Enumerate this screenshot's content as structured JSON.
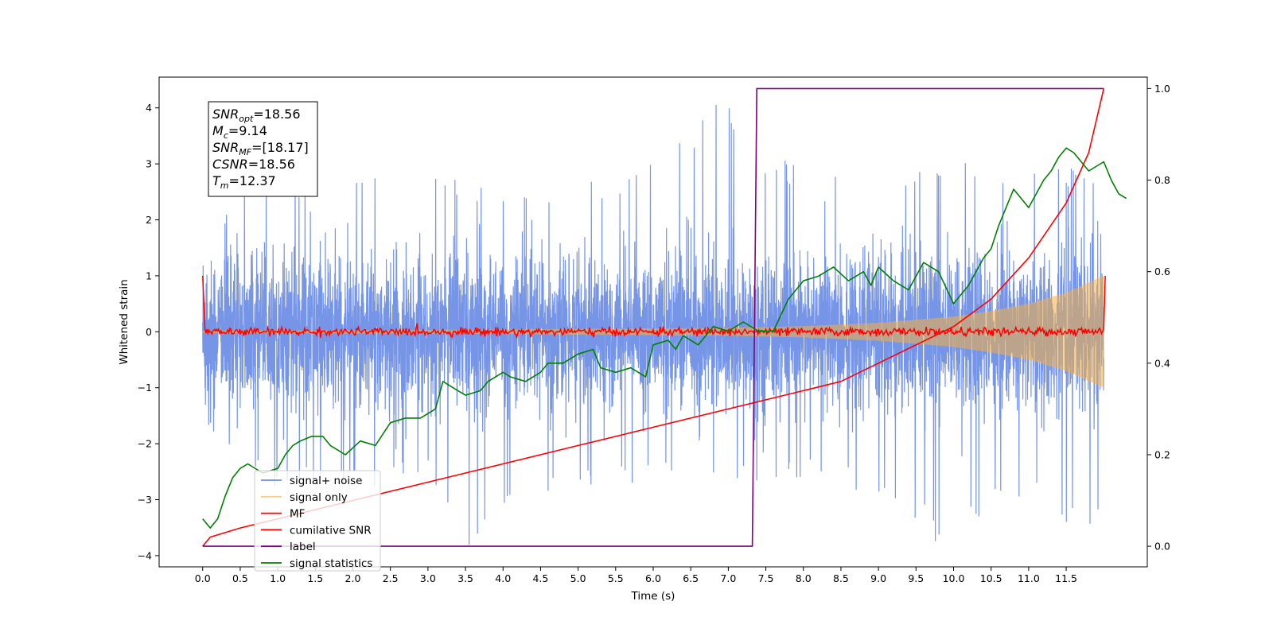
{
  "chart_data": {
    "type": "line",
    "xlabel": "Time (s)",
    "ylabel": "Whitened strain",
    "xlim": [
      -0.58,
      12.58
    ],
    "ylim": [
      -4.2,
      4.55
    ],
    "y2lim": [
      -0.045,
      1.025
    ],
    "x_ticks": [
      0,
      0.5,
      1,
      1.5,
      2,
      2.5,
      3,
      3.5,
      4,
      4.5,
      5,
      5.5,
      6,
      6.5,
      7,
      7.5,
      8,
      8.5,
      9,
      9.5,
      10,
      10.5,
      11,
      11.5
    ],
    "x_tick_labels": [
      "0.0",
      "0.5",
      "1.0",
      "1.5",
      "2.0",
      "2.5",
      "3.0",
      "3.5",
      "4.0",
      "4.5",
      "5.0",
      "5.5",
      "6.0",
      "6.5",
      "7.0",
      "7.5",
      "8.0",
      "8.5",
      "9.0",
      "9.5",
      "10.0",
      "10.5",
      "11.0",
      "11.5"
    ],
    "y_ticks": [
      4,
      3,
      2,
      1,
      0,
      -1,
      -2,
      -3,
      -4
    ],
    "y_tick_labels": [
      "4",
      "3",
      "2",
      "1",
      "0",
      "−1",
      "−2",
      "−3",
      "−4"
    ],
    "y2_ticks": [
      1.0,
      0.8,
      0.6,
      0.4,
      0.2,
      0.0
    ],
    "y2_tick_labels": [
      "1.0",
      "0.8",
      "0.6",
      "0.4",
      "0.2",
      "0.0"
    ],
    "grid": false,
    "legend_position": "lower-left",
    "legend": [
      {
        "label": "signal+ noise",
        "color": "#6f8fe6"
      },
      {
        "label": "signal only",
        "color": "#f5b041"
      },
      {
        "label": "MF",
        "color": "#ff0000"
      },
      {
        "label": "cumilative SNR",
        "color": "#ff0000"
      },
      {
        "label": "label",
        "color": "#800080"
      },
      {
        "label": "signal statistics",
        "color": "#008000"
      }
    ],
    "info_box": {
      "snr_opt": "=18.56",
      "mc": "=9.14",
      "snr_mf": "=[18.17]",
      "csnr": "=18.56",
      "tm": "=12.37"
    },
    "series": [
      {
        "name": "signal+ noise",
        "axis": "left",
        "style": "dense oscillating noise",
        "x_range": [
          0,
          12.0
        ],
        "upper_envelope_approx": [
          [
            0,
            1.6
          ],
          [
            0.5,
            2.7
          ],
          [
            1,
            2.6
          ],
          [
            2,
            3.1
          ],
          [
            3,
            2.9
          ],
          [
            4,
            2.6
          ],
          [
            5,
            2.6
          ],
          [
            6,
            3.1
          ],
          [
            6.9,
            4.2
          ],
          [
            7.5,
            3.3
          ],
          [
            8,
            3.0
          ],
          [
            9,
            3.0
          ],
          [
            10,
            3.0
          ],
          [
            11,
            3.1
          ],
          [
            12,
            2.8
          ]
        ],
        "lower_envelope_approx": [
          [
            0,
            -1.6
          ],
          [
            0.5,
            -2.6
          ],
          [
            1,
            -2.8
          ],
          [
            2,
            -2.9
          ],
          [
            3,
            -2.6
          ],
          [
            3.5,
            -3.9
          ],
          [
            4,
            -3.2
          ],
          [
            5,
            -2.8
          ],
          [
            6,
            -2.8
          ],
          [
            7,
            -2.7
          ],
          [
            8,
            -2.6
          ],
          [
            9,
            -3.0
          ],
          [
            9.75,
            -3.75
          ],
          [
            11,
            -3.0
          ],
          [
            11.8,
            -3.85
          ],
          [
            12,
            -2.9
          ]
        ]
      },
      {
        "name": "signal only",
        "axis": "left",
        "style": "chirp with growing amplitude",
        "amplitude_points": [
          [
            0,
            0.02
          ],
          [
            2,
            0.03
          ],
          [
            4,
            0.04
          ],
          [
            6,
            0.06
          ],
          [
            7,
            0.07
          ],
          [
            8,
            0.1
          ],
          [
            9,
            0.16
          ],
          [
            10,
            0.27
          ],
          [
            10.5,
            0.37
          ],
          [
            11,
            0.5
          ],
          [
            11.5,
            0.7
          ],
          [
            12,
            1.0
          ]
        ]
      },
      {
        "name": "MF",
        "axis": "left",
        "style": "noisy near zero, edge spikes to 1.0",
        "points": [
          [
            0,
            1.0
          ],
          [
            0.03,
            0.05
          ],
          [
            12,
            0.05
          ],
          [
            12.02,
            1.0
          ]
        ]
      },
      {
        "name": "cumilative SNR",
        "axis": "right",
        "points": [
          [
            0,
            0.0
          ],
          [
            0.1,
            0.02
          ],
          [
            0.5,
            0.04
          ],
          [
            1,
            0.06
          ],
          [
            2,
            0.1
          ],
          [
            3,
            0.14
          ],
          [
            4,
            0.18
          ],
          [
            5,
            0.22
          ],
          [
            6,
            0.26
          ],
          [
            7,
            0.3
          ],
          [
            7.5,
            0.32
          ],
          [
            8,
            0.34
          ],
          [
            8.5,
            0.36
          ],
          [
            9,
            0.4
          ],
          [
            9.5,
            0.44
          ],
          [
            10,
            0.48
          ],
          [
            10.5,
            0.54
          ],
          [
            11,
            0.63
          ],
          [
            11.5,
            0.75
          ],
          [
            11.8,
            0.86
          ],
          [
            12.0,
            1.0
          ]
        ]
      },
      {
        "name": "label",
        "axis": "right",
        "points": [
          [
            0,
            0.0
          ],
          [
            7.32,
            0.0
          ],
          [
            7.38,
            1.0
          ],
          [
            12.0,
            1.0
          ]
        ]
      },
      {
        "name": "signal statistics",
        "axis": "right",
        "points": [
          [
            0,
            0.06
          ],
          [
            0.1,
            0.04
          ],
          [
            0.2,
            0.06
          ],
          [
            0.3,
            0.11
          ],
          [
            0.4,
            0.15
          ],
          [
            0.5,
            0.17
          ],
          [
            0.6,
            0.18
          ],
          [
            0.8,
            0.16
          ],
          [
            1.0,
            0.17
          ],
          [
            1.1,
            0.2
          ],
          [
            1.2,
            0.22
          ],
          [
            1.3,
            0.23
          ],
          [
            1.45,
            0.24
          ],
          [
            1.6,
            0.24
          ],
          [
            1.7,
            0.22
          ],
          [
            1.9,
            0.2
          ],
          [
            2.1,
            0.23
          ],
          [
            2.3,
            0.22
          ],
          [
            2.5,
            0.27
          ],
          [
            2.7,
            0.28
          ],
          [
            2.9,
            0.28
          ],
          [
            3.1,
            0.3
          ],
          [
            3.2,
            0.36
          ],
          [
            3.4,
            0.34
          ],
          [
            3.5,
            0.33
          ],
          [
            3.7,
            0.34
          ],
          [
            3.8,
            0.36
          ],
          [
            4.0,
            0.38
          ],
          [
            4.1,
            0.37
          ],
          [
            4.3,
            0.36
          ],
          [
            4.5,
            0.38
          ],
          [
            4.6,
            0.4
          ],
          [
            4.8,
            0.4
          ],
          [
            5.0,
            0.42
          ],
          [
            5.2,
            0.43
          ],
          [
            5.3,
            0.39
          ],
          [
            5.5,
            0.38
          ],
          [
            5.7,
            0.39
          ],
          [
            5.9,
            0.37
          ],
          [
            6.0,
            0.44
          ],
          [
            6.2,
            0.45
          ],
          [
            6.3,
            0.43
          ],
          [
            6.4,
            0.46
          ],
          [
            6.6,
            0.44
          ],
          [
            6.8,
            0.48
          ],
          [
            7.0,
            0.47
          ],
          [
            7.2,
            0.49
          ],
          [
            7.4,
            0.47
          ],
          [
            7.6,
            0.47
          ],
          [
            7.8,
            0.54
          ],
          [
            8.0,
            0.58
          ],
          [
            8.2,
            0.59
          ],
          [
            8.4,
            0.61
          ],
          [
            8.6,
            0.58
          ],
          [
            8.8,
            0.6
          ],
          [
            8.9,
            0.57
          ],
          [
            9.0,
            0.61
          ],
          [
            9.2,
            0.58
          ],
          [
            9.4,
            0.56
          ],
          [
            9.6,
            0.62
          ],
          [
            9.8,
            0.6
          ],
          [
            10.0,
            0.53
          ],
          [
            10.2,
            0.57
          ],
          [
            10.4,
            0.63
          ],
          [
            10.5,
            0.65
          ],
          [
            10.6,
            0.7
          ],
          [
            10.8,
            0.78
          ],
          [
            11.0,
            0.74
          ],
          [
            11.2,
            0.8
          ],
          [
            11.3,
            0.82
          ],
          [
            11.4,
            0.85
          ],
          [
            11.5,
            0.87
          ],
          [
            11.6,
            0.86
          ],
          [
            11.8,
            0.82
          ],
          [
            12.0,
            0.84
          ],
          [
            12.1,
            0.8
          ],
          [
            12.2,
            0.77
          ],
          [
            12.3,
            0.76
          ]
        ]
      }
    ]
  }
}
